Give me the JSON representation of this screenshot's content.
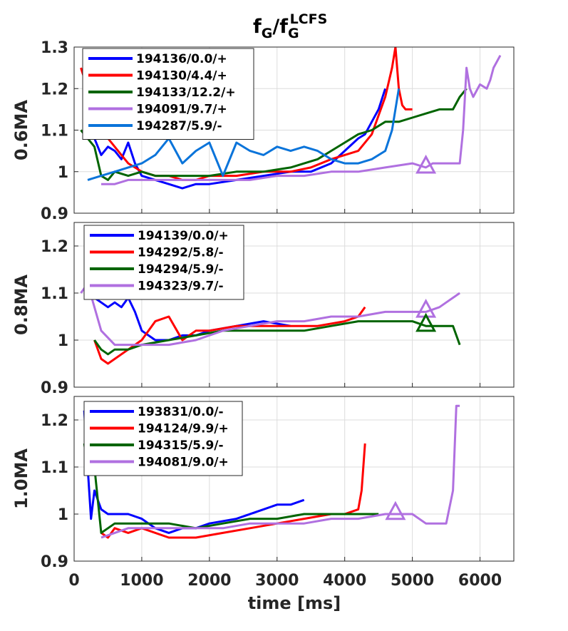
{
  "title": {
    "base": "f",
    "sub": "G",
    "sep": "/f",
    "sub2": "G",
    "sup2": "LCFS"
  },
  "xlabel": "time [ms]",
  "chart_data": {
    "type": "line",
    "xlim": [
      0,
      6500
    ],
    "x_ticks": [
      "0",
      "1000",
      "2000",
      "3000",
      "4000",
      "5000",
      "6000"
    ],
    "x_tick_values": [
      0,
      1000,
      2000,
      3000,
      4000,
      5000,
      6000
    ],
    "grid": true,
    "panels": [
      {
        "ylabel": "0.6MA",
        "ylim": [
          0.9,
          1.3
        ],
        "y_ticks": [
          "0.9",
          "1",
          "1.1",
          "1.2",
          "1.3"
        ],
        "y_tick_values": [
          0.9,
          1.0,
          1.1,
          1.2,
          1.3
        ],
        "series": [
          {
            "name": "194136/0.0/+",
            "color": "#0000ff",
            "x": [
              300,
              400,
              500,
              600,
              700,
              800,
              900,
              1000,
              1200,
              1400,
              1600,
              1800,
              2000,
              2400,
              2800,
              3200,
              3500,
              3800,
              4000,
              4200,
              4300,
              4400,
              4500,
              4600
            ],
            "y": [
              1.08,
              1.04,
              1.06,
              1.05,
              1.03,
              1.07,
              1.02,
              0.99,
              0.98,
              0.97,
              0.96,
              0.97,
              0.97,
              0.98,
              0.99,
              1.0,
              1.0,
              1.02,
              1.05,
              1.08,
              1.09,
              1.12,
              1.15,
              1.2
            ]
          },
          {
            "name": "194130/4.4/+",
            "color": "#ff0000",
            "x": [
              100,
              200,
              300,
              400,
              500,
              600,
              700,
              800,
              900,
              1000,
              1200,
              1400,
              1600,
              1800,
              2000,
              2400,
              2800,
              3200,
              3500,
              3800,
              4000,
              4200,
              4400,
              4600,
              4700,
              4750,
              4800,
              4850,
              4900,
              5000
            ],
            "y": [
              1.25,
              1.2,
              1.15,
              1.1,
              1.08,
              1.06,
              1.04,
              1.02,
              1.01,
              1.0,
              0.99,
              0.99,
              0.98,
              0.98,
              0.99,
              0.99,
              1.0,
              1.0,
              1.01,
              1.03,
              1.04,
              1.05,
              1.09,
              1.18,
              1.25,
              1.3,
              1.2,
              1.16,
              1.15,
              1.15
            ]
          },
          {
            "name": "194133/12.2/+",
            "color": "#006400",
            "x": [
              100,
              200,
              300,
              400,
              500,
              600,
              800,
              1000,
              1200,
              1600,
              2000,
              2400,
              2800,
              3200,
              3600,
              3800,
              4000,
              4200,
              4400,
              4600,
              4800,
              5000,
              5200,
              5400,
              5600,
              5700,
              5800
            ],
            "y": [
              1.1,
              1.08,
              1.06,
              0.99,
              0.98,
              1.0,
              0.99,
              1.0,
              0.99,
              0.99,
              0.99,
              1.0,
              1.0,
              1.01,
              1.03,
              1.05,
              1.07,
              1.09,
              1.1,
              1.12,
              1.12,
              1.13,
              1.14,
              1.15,
              1.15,
              1.18,
              1.2
            ]
          },
          {
            "name": "194091/9.7/+",
            "color": "#b070e0",
            "x": [
              400,
              600,
              800,
              1000,
              1400,
              1800,
              2200,
              2600,
              3000,
              3400,
              3800,
              4200,
              4600,
              5000,
              5200,
              5300,
              5400,
              5600,
              5700,
              5750,
              5800,
              5850,
              5900,
              6000,
              6100,
              6150,
              6200,
              6300
            ],
            "y": [
              0.97,
              0.97,
              0.98,
              0.98,
              0.98,
              0.98,
              0.98,
              0.98,
              0.99,
              0.99,
              1.0,
              1.0,
              1.01,
              1.02,
              1.01,
              1.02,
              1.02,
              1.02,
              1.02,
              1.1,
              1.25,
              1.2,
              1.18,
              1.21,
              1.2,
              1.22,
              1.25,
              1.28
            ]
          },
          {
            "name": "194287/5.9/-",
            "color": "#0a74da",
            "x": [
              200,
              400,
              600,
              800,
              1000,
              1200,
              1400,
              1600,
              1800,
              2000,
              2200,
              2400,
              2600,
              2800,
              3000,
              3200,
              3400,
              3600,
              3800,
              4000,
              4200,
              4400,
              4600,
              4700,
              4800
            ],
            "y": [
              0.98,
              0.99,
              1.0,
              1.01,
              1.02,
              1.04,
              1.08,
              1.02,
              1.05,
              1.07,
              0.99,
              1.07,
              1.05,
              1.04,
              1.06,
              1.05,
              1.06,
              1.05,
              1.03,
              1.02,
              1.02,
              1.03,
              1.05,
              1.1,
              1.2
            ]
          }
        ],
        "markers": [
          {
            "x": 5200,
            "y": 1.015,
            "color": "#b070e0"
          }
        ]
      },
      {
        "ylabel": "0.8MA",
        "ylim": [
          0.9,
          1.25
        ],
        "y_ticks": [
          "0.9",
          "1",
          "1.1",
          "1.2"
        ],
        "y_tick_values": [
          0.9,
          1.0,
          1.1,
          1.2
        ],
        "series": [
          {
            "name": "194139/0.0/+",
            "color": "#0000ff",
            "x": [
              300,
              400,
              500,
              600,
              700,
              800,
              900,
              1000,
              1200,
              1400,
              1600,
              1800,
              2000,
              2400,
              2800,
              3200
            ],
            "y": [
              1.09,
              1.08,
              1.07,
              1.08,
              1.07,
              1.09,
              1.06,
              1.02,
              1.0,
              1.0,
              1.01,
              1.01,
              1.02,
              1.03,
              1.04,
              1.03
            ]
          },
          {
            "name": "194292/5.8/-",
            "color": "#ff0000",
            "x": [
              300,
              400,
              500,
              600,
              800,
              1000,
              1200,
              1400,
              1600,
              1800,
              2000,
              2400,
              2800,
              3200,
              3600,
              4000,
              4200,
              4300
            ],
            "y": [
              1.0,
              0.96,
              0.95,
              0.96,
              0.98,
              1.0,
              1.04,
              1.05,
              1.0,
              1.02,
              1.02,
              1.03,
              1.03,
              1.03,
              1.03,
              1.04,
              1.05,
              1.07
            ]
          },
          {
            "name": "194294/5.9/-",
            "color": "#006400",
            "x": [
              300,
              400,
              500,
              600,
              800,
              1000,
              1400,
              1800,
              2200,
              2600,
              3000,
              3400,
              3800,
              4200,
              4600,
              5000,
              5200,
              5400,
              5600,
              5700
            ],
            "y": [
              1.0,
              0.98,
              0.97,
              0.98,
              0.98,
              0.99,
              1.0,
              1.01,
              1.02,
              1.02,
              1.02,
              1.02,
              1.03,
              1.04,
              1.04,
              1.04,
              1.03,
              1.03,
              1.03,
              0.99
            ]
          },
          {
            "name": "194323/9.7/-",
            "color": "#b070e0",
            "x": [
              100,
              200,
              400,
              600,
              800,
              1000,
              1400,
              1800,
              2200,
              2600,
              3000,
              3400,
              3800,
              4200,
              4600,
              5000,
              5200,
              5400,
              5500,
              5700
            ],
            "y": [
              1.1,
              1.12,
              1.02,
              0.99,
              0.99,
              0.99,
              0.99,
              1.0,
              1.02,
              1.03,
              1.04,
              1.04,
              1.05,
              1.05,
              1.06,
              1.06,
              1.06,
              1.07,
              1.08,
              1.1
            ]
          }
        ],
        "markers": [
          {
            "x": 5200,
            "y": 1.065,
            "color": "#b070e0"
          },
          {
            "x": 5200,
            "y": 1.035,
            "color": "#006400"
          }
        ]
      },
      {
        "ylabel": "1.0MA",
        "ylim": [
          0.9,
          1.25
        ],
        "y_ticks": [
          "0.9",
          "1",
          "1.1",
          "1.2"
        ],
        "y_tick_values": [
          0.9,
          1.0,
          1.1,
          1.2
        ],
        "series": [
          {
            "name": "193831/0.0/-",
            "color": "#0000ff",
            "x": [
              150,
              200,
              250,
              300,
              400,
              500,
              600,
              800,
              1000,
              1200,
              1400,
              1600,
              1800,
              2000,
              2400,
              2800,
              3000,
              3200,
              3400
            ],
            "y": [
              1.22,
              1.1,
              0.99,
              1.05,
              1.01,
              1.0,
              1.0,
              1.0,
              0.99,
              0.97,
              0.96,
              0.97,
              0.97,
              0.98,
              0.99,
              1.01,
              1.02,
              1.02,
              1.03
            ]
          },
          {
            "name": "194124/9.9/+",
            "color": "#ff0000",
            "x": [
              400,
              500,
              600,
              800,
              1000,
              1400,
              1800,
              2200,
              2600,
              3000,
              3400,
              3800,
              4000,
              4200,
              4250,
              4300
            ],
            "y": [
              0.96,
              0.95,
              0.97,
              0.96,
              0.97,
              0.95,
              0.95,
              0.96,
              0.97,
              0.98,
              0.99,
              1.0,
              1.0,
              1.01,
              1.05,
              1.15
            ]
          },
          {
            "name": "194315/5.9/-",
            "color": "#006400",
            "x": [
              150,
              200,
              300,
              400,
              500,
              600,
              800,
              1000,
              1400,
              1800,
              2200,
              2600,
              3000,
              3400,
              3800,
              4200,
              4500
            ],
            "y": [
              1.15,
              1.1,
              1.1,
              0.96,
              0.97,
              0.98,
              0.98,
              0.98,
              0.98,
              0.97,
              0.98,
              0.99,
              0.99,
              1.0,
              1.0,
              1.0,
              1.0
            ]
          },
          {
            "name": "194081/9.0/+",
            "color": "#b070e0",
            "x": [
              400,
              600,
              800,
              1000,
              1400,
              1800,
              2200,
              2600,
              3000,
              3400,
              3800,
              4200,
              4600,
              5000,
              5200,
              5400,
              5500,
              5600,
              5650,
              5700
            ],
            "y": [
              0.95,
              0.96,
              0.97,
              0.97,
              0.97,
              0.97,
              0.97,
              0.98,
              0.98,
              0.98,
              0.99,
              0.99,
              1.0,
              1.0,
              0.98,
              0.98,
              0.98,
              1.05,
              1.23,
              1.23
            ]
          }
        ],
        "markers": [
          {
            "x": 4750,
            "y": 1.005,
            "color": "#b070e0"
          }
        ]
      }
    ]
  }
}
